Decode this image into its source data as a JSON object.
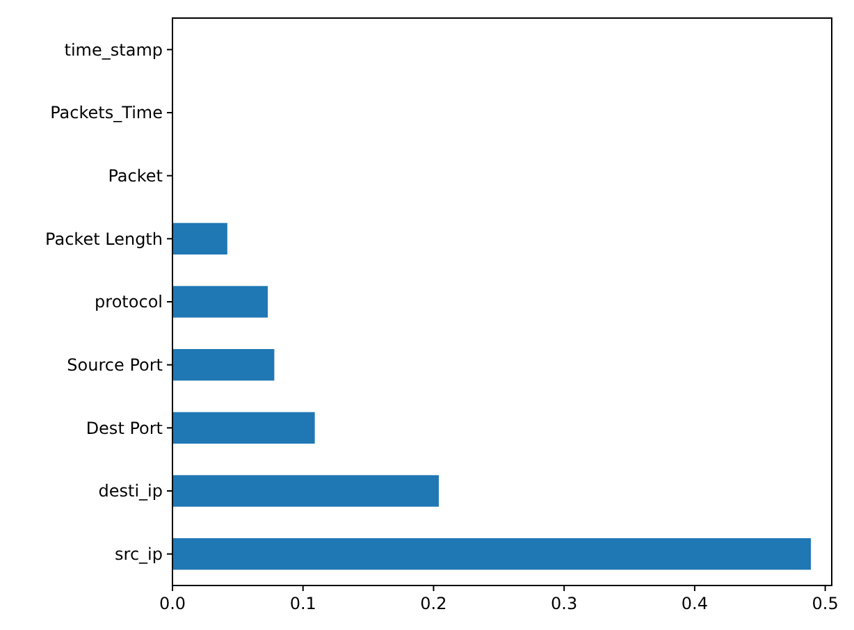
{
  "chart_data": {
    "type": "bar",
    "orientation": "horizontal",
    "categories": [
      "time_stamp",
      "Packets_Time",
      "Packet",
      "Packet Length",
      "protocol",
      "Source Port",
      "Dest Port",
      "desti_ip",
      "src_ip"
    ],
    "values": [
      0,
      0,
      0,
      0.042,
      0.073,
      0.078,
      0.109,
      0.204,
      0.489
    ],
    "color": "#1f77b4",
    "xlim": [
      0,
      0.505
    ],
    "xticks": [
      {
        "value": 0,
        "label": "0.0"
      },
      0.1,
      0.2,
      0.3,
      0.4,
      0.5
    ],
    "grid": false
  }
}
